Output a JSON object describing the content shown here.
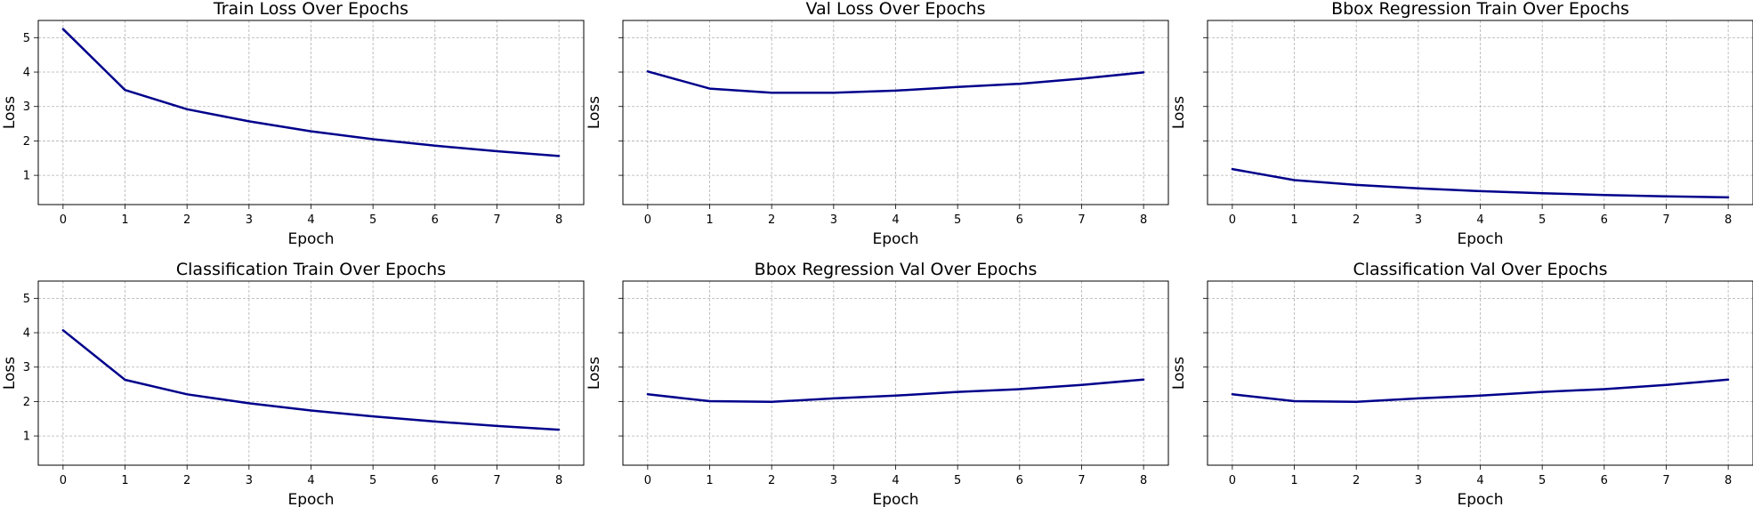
{
  "figure": {
    "line_color": "#00008b"
  },
  "chart_data": [
    {
      "type": "line",
      "title": "Train Loss Over Epochs",
      "xlabel": "Epoch",
      "ylabel": "Loss",
      "x": [
        0,
        1,
        2,
        3,
        4,
        5,
        6,
        7,
        8
      ],
      "series": [
        {
          "values": [
            5.25,
            3.48,
            2.92,
            2.57,
            2.28,
            2.05,
            1.86,
            1.7,
            1.56
          ]
        }
      ],
      "xlim": [
        -0.4,
        8.4
      ],
      "ylim": [
        0.15,
        5.5
      ],
      "xticks": [
        0,
        1,
        2,
        3,
        4,
        5,
        6,
        7,
        8
      ],
      "yticks": [
        1,
        2,
        3,
        4,
        5
      ],
      "show_ytick_labels": true,
      "grid": true
    },
    {
      "type": "line",
      "title": "Val Loss Over Epochs",
      "xlabel": "Epoch",
      "ylabel": "Loss",
      "x": [
        0,
        1,
        2,
        3,
        4,
        5,
        6,
        7,
        8
      ],
      "series": [
        {
          "values": [
            4.02,
            3.52,
            3.4,
            3.4,
            3.46,
            3.57,
            3.66,
            3.81,
            3.99
          ]
        }
      ],
      "xlim": [
        -0.4,
        8.4
      ],
      "ylim": [
        0.15,
        5.5
      ],
      "xticks": [
        0,
        1,
        2,
        3,
        4,
        5,
        6,
        7,
        8
      ],
      "yticks": [
        1,
        2,
        3,
        4,
        5
      ],
      "show_ytick_labels": false,
      "grid": true
    },
    {
      "type": "line",
      "title": "Bbox Regression Train Over Epochs",
      "xlabel": "Epoch",
      "ylabel": "Loss",
      "x": [
        0,
        1,
        2,
        3,
        4,
        5,
        6,
        7,
        8
      ],
      "series": [
        {
          "values": [
            1.18,
            0.86,
            0.72,
            0.62,
            0.54,
            0.48,
            0.43,
            0.39,
            0.36
          ]
        }
      ],
      "xlim": [
        -0.4,
        8.4
      ],
      "ylim": [
        0.15,
        5.5
      ],
      "xticks": [
        0,
        1,
        2,
        3,
        4,
        5,
        6,
        7,
        8
      ],
      "yticks": [
        1,
        2,
        3,
        4,
        5
      ],
      "show_ytick_labels": false,
      "grid": true
    },
    {
      "type": "line",
      "title": "Classification Train Over Epochs",
      "xlabel": "Epoch",
      "ylabel": "Loss",
      "x": [
        0,
        1,
        2,
        3,
        4,
        5,
        6,
        7,
        8
      ],
      "series": [
        {
          "values": [
            4.07,
            2.63,
            2.21,
            1.95,
            1.74,
            1.57,
            1.42,
            1.29,
            1.18
          ]
        }
      ],
      "xlim": [
        -0.4,
        8.4
      ],
      "ylim": [
        0.15,
        5.5
      ],
      "xticks": [
        0,
        1,
        2,
        3,
        4,
        5,
        6,
        7,
        8
      ],
      "yticks": [
        1,
        2,
        3,
        4,
        5
      ],
      "show_ytick_labels": true,
      "grid": true
    },
    {
      "type": "line",
      "title": "Bbox Regression Val Over Epochs",
      "xlabel": "Epoch",
      "ylabel": "Loss",
      "x": [
        0,
        1,
        2,
        3,
        4,
        5,
        6,
        7,
        8
      ],
      "series": [
        {
          "values": [
            2.21,
            2.01,
            1.99,
            2.09,
            2.17,
            2.28,
            2.36,
            2.48,
            2.64
          ]
        }
      ],
      "xlim": [
        -0.4,
        8.4
      ],
      "ylim": [
        0.15,
        5.5
      ],
      "xticks": [
        0,
        1,
        2,
        3,
        4,
        5,
        6,
        7,
        8
      ],
      "yticks": [
        1,
        2,
        3,
        4,
        5
      ],
      "show_ytick_labels": false,
      "grid": true
    },
    {
      "type": "line",
      "title": "Classification Val Over Epochs",
      "xlabel": "Epoch",
      "ylabel": "Loss",
      "x": [
        0,
        1,
        2,
        3,
        4,
        5,
        6,
        7,
        8
      ],
      "series": [
        {
          "values": [
            2.21,
            2.01,
            1.99,
            2.09,
            2.17,
            2.28,
            2.36,
            2.48,
            2.64
          ]
        }
      ],
      "xlim": [
        -0.4,
        8.4
      ],
      "ylim": [
        0.15,
        5.5
      ],
      "xticks": [
        0,
        1,
        2,
        3,
        4,
        5,
        6,
        7,
        8
      ],
      "yticks": [
        1,
        2,
        3,
        4,
        5
      ],
      "show_ytick_labels": false,
      "grid": true
    }
  ]
}
